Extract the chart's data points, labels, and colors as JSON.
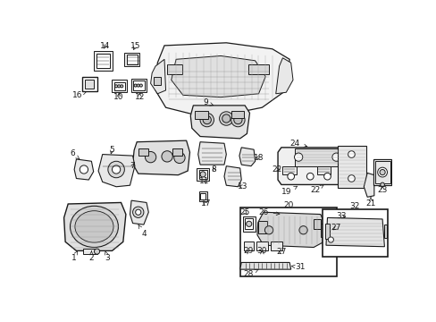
{
  "bg_color": "#ffffff",
  "fig_width": 4.89,
  "fig_height": 3.6,
  "dpi": 100,
  "line_color": "#1a1a1a",
  "lw": 0.7,
  "fs": 6.5
}
